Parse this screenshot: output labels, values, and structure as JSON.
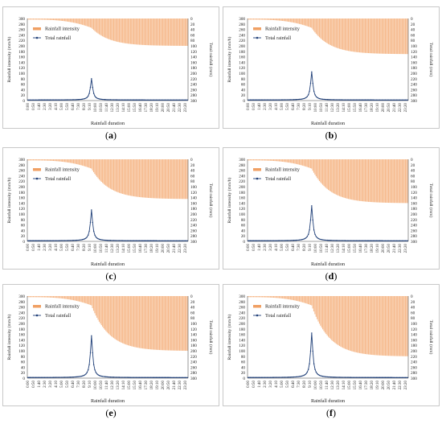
{
  "chart_data": [
    {
      "type": "bar-line",
      "caption": "a",
      "peak_rainfall_mm": 80,
      "min_intensity_mm_h": 100,
      "xlabel": "Rainfall duration",
      "ylabel_left": "Rainfall intensity (mm/h)",
      "ylabel_right": "Total rainfall (mm)",
      "legend": [
        "Rainfall intensity",
        "Total rainfall"
      ],
      "ylim_left": [
        0,
        300
      ],
      "ylim_right": [
        300,
        0
      ],
      "left_ticks": [
        "300",
        "280",
        "260",
        "240",
        "220",
        "200",
        "180",
        "160",
        "140",
        "120",
        "100",
        "80",
        "60",
        "40",
        "20",
        "0"
      ],
      "right_ticks": [
        "0",
        "20",
        "40",
        "60",
        "80",
        "100",
        "120",
        "140",
        "160",
        "180",
        "200",
        "220",
        "240",
        "260",
        "280",
        "300"
      ],
      "x_ticks": [
        "0:00",
        "0:50",
        "1:40",
        "2:30",
        "3:20",
        "4:10",
        "5:00",
        "5:50",
        "6:40",
        "7:30",
        "8:20",
        "9:10",
        "10:00",
        "10:50",
        "11:40",
        "12:30",
        "13:20",
        "14:10",
        "15:00",
        "15:50",
        "16:40",
        "17:30",
        "18:20",
        "19:10",
        "20:00",
        "20:50",
        "21:40",
        "22:30",
        "23:20"
      ]
    },
    {
      "type": "bar-line",
      "caption": "b",
      "peak_rainfall_mm": 105,
      "min_intensity_mm_h": 130,
      "xlabel": "Rainfall duration",
      "ylabel_left": "Rainfall intensity (mm/h)",
      "ylabel_right": "Total rainfall (mm)",
      "legend": [
        "Rainfall intensity",
        "Total rainfall"
      ],
      "ylim_left": [
        0,
        300
      ],
      "ylim_right": [
        300,
        0
      ],
      "left_ticks": [
        "300",
        "280",
        "260",
        "240",
        "220",
        "200",
        "180",
        "160",
        "140",
        "120",
        "100",
        "80",
        "60",
        "40",
        "20",
        "0"
      ],
      "right_ticks": [
        "0",
        "20",
        "40",
        "60",
        "80",
        "100",
        "120",
        "140",
        "160",
        "180",
        "200",
        "220",
        "240",
        "260",
        "280",
        "300"
      ],
      "x_ticks": [
        "0:00",
        "0:50",
        "1:40",
        "2:30",
        "3:20",
        "4:10",
        "5:00",
        "5:50",
        "6:40",
        "7:30",
        "8:20",
        "9:10",
        "10:00",
        "10:50",
        "11:40",
        "12:30",
        "13:20",
        "14:10",
        "15:00",
        "15:50",
        "16:40",
        "17:30",
        "18:20",
        "19:10",
        "20:00",
        "20:50",
        "21:40",
        "22:30",
        "23:20"
      ]
    },
    {
      "type": "bar-line",
      "caption": "c",
      "peak_rainfall_mm": 115,
      "min_intensity_mm_h": 145,
      "xlabel": "Rainfall duration",
      "ylabel_left": "Rainfall intensity (mm/h)",
      "ylabel_right": "Total rainfall (mm)",
      "legend": [
        "Rainfall intensity",
        "Total rainfall"
      ],
      "ylim_left": [
        0,
        300
      ],
      "ylim_right": [
        300,
        0
      ],
      "left_ticks": [
        "300",
        "280",
        "260",
        "240",
        "220",
        "200",
        "180",
        "160",
        "140",
        "120",
        "100",
        "80",
        "60",
        "40",
        "20",
        "0"
      ],
      "right_ticks": [
        "0",
        "20",
        "40",
        "60",
        "80",
        "100",
        "120",
        "140",
        "160",
        "180",
        "200",
        "220",
        "240",
        "260",
        "280",
        "300"
      ],
      "x_ticks": [
        "0:00",
        "0:50",
        "1:40",
        "2:30",
        "3:20",
        "4:10",
        "5:00",
        "5:50",
        "6:40",
        "7:30",
        "8:20",
        "9:10",
        "10:00",
        "10:50",
        "11:40",
        "12:30",
        "13:20",
        "14:10",
        "15:00",
        "15:50",
        "16:40",
        "17:30",
        "18:20",
        "19:10",
        "20:00",
        "20:50",
        "21:40",
        "22:30",
        "23:20"
      ]
    },
    {
      "type": "bar-line",
      "caption": "d",
      "peak_rainfall_mm": 130,
      "min_intensity_mm_h": 160,
      "xlabel": "Rainfall duration",
      "ylabel_left": "Rainfall intensity (mm/h)",
      "ylabel_right": "Total rainfall (mm)",
      "legend": [
        "Rainfall intensity",
        "Total rainfall"
      ],
      "ylim_left": [
        0,
        300
      ],
      "ylim_right": [
        300,
        0
      ],
      "left_ticks": [
        "300",
        "280",
        "260",
        "240",
        "220",
        "200",
        "180",
        "160",
        "140",
        "120",
        "100",
        "80",
        "60",
        "40",
        "20",
        "0"
      ],
      "right_ticks": [
        "0",
        "20",
        "40",
        "60",
        "80",
        "100",
        "120",
        "140",
        "160",
        "180",
        "200",
        "220",
        "240",
        "260",
        "280",
        "300"
      ],
      "x_ticks": [
        "0:00",
        "0:50",
        "1:40",
        "2:30",
        "3:20",
        "4:10",
        "5:00",
        "5:50",
        "6:40",
        "7:30",
        "8:20",
        "9:10",
        "10:00",
        "10:50",
        "11:40",
        "12:30",
        "13:20",
        "14:10",
        "15:00",
        "15:50",
        "16:40",
        "17:30",
        "18:20",
        "19:10",
        "20:00",
        "20:50",
        "21:40",
        "22:30",
        "23:20"
      ]
    },
    {
      "type": "bar-line",
      "caption": "e",
      "peak_rainfall_mm": 155,
      "min_intensity_mm_h": 200,
      "xlabel": "Rainfall duration",
      "ylabel_left": "Rainfall intensity (mm/h)",
      "ylabel_right": "Total rainfall (mm)",
      "legend": [
        "Rainfall intensity",
        "Total rainfall"
      ],
      "ylim_left": [
        0,
        300
      ],
      "ylim_right": [
        300,
        0
      ],
      "left_ticks": [
        "300",
        "280",
        "260",
        "240",
        "220",
        "200",
        "180",
        "160",
        "140",
        "120",
        "100",
        "80",
        "60",
        "40",
        "20",
        "0"
      ],
      "right_ticks": [
        "0",
        "20",
        "40",
        "60",
        "80",
        "100",
        "120",
        "140",
        "160",
        "180",
        "200",
        "220",
        "240",
        "260",
        "280",
        "300"
      ],
      "x_ticks": [
        "0:00",
        "0:50",
        "1:40",
        "2:30",
        "3:20",
        "4:10",
        "5:00",
        "5:50",
        "6:40",
        "7:30",
        "8:20",
        "9:10",
        "10:00",
        "10:50",
        "11:40",
        "12:30",
        "13:20",
        "14:10",
        "15:00",
        "15:50",
        "16:40",
        "17:30",
        "18:20",
        "19:10",
        "20:00",
        "20:50",
        "21:40",
        "22:30",
        "23:20"
      ]
    },
    {
      "type": "bar-line",
      "caption": "f",
      "peak_rainfall_mm": 165,
      "min_intensity_mm_h": 220,
      "xlabel": "Rainfall duration",
      "ylabel_left": "Rainfall intensity (mm/h)",
      "ylabel_right": "Total rainfall (mm)",
      "legend": [
        "Rainfall intensity",
        "Total rainfall"
      ],
      "ylim_left": [
        0,
        300
      ],
      "ylim_right": [
        300,
        0
      ],
      "left_ticks": [
        "300",
        "280",
        "260",
        "240",
        "220",
        "200",
        "180",
        "160",
        "140",
        "120",
        "100",
        "80",
        "60",
        "40",
        "20",
        "0"
      ],
      "right_ticks": [
        "0",
        "20",
        "40",
        "60",
        "80",
        "100",
        "120",
        "140",
        "160",
        "180",
        "200",
        "220",
        "240",
        "260",
        "280",
        "300"
      ],
      "x_ticks": [
        "0:00",
        "0:50",
        "1:40",
        "2:30",
        "3:20",
        "4:10",
        "5:00",
        "5:50",
        "6:40",
        "7:30",
        "8:20",
        "9:10",
        "10:00",
        "10:50",
        "11:40",
        "12:30",
        "13:20",
        "14:10",
        "15:00",
        "15:50",
        "16:40",
        "17:30",
        "18:20",
        "19:10",
        "20:00",
        "20:50",
        "21:40",
        "22:30",
        "23:20"
      ]
    }
  ],
  "colors": {
    "bars": "#f6b98b",
    "line": "#1f3f78",
    "axis": "#7f7f7f"
  }
}
